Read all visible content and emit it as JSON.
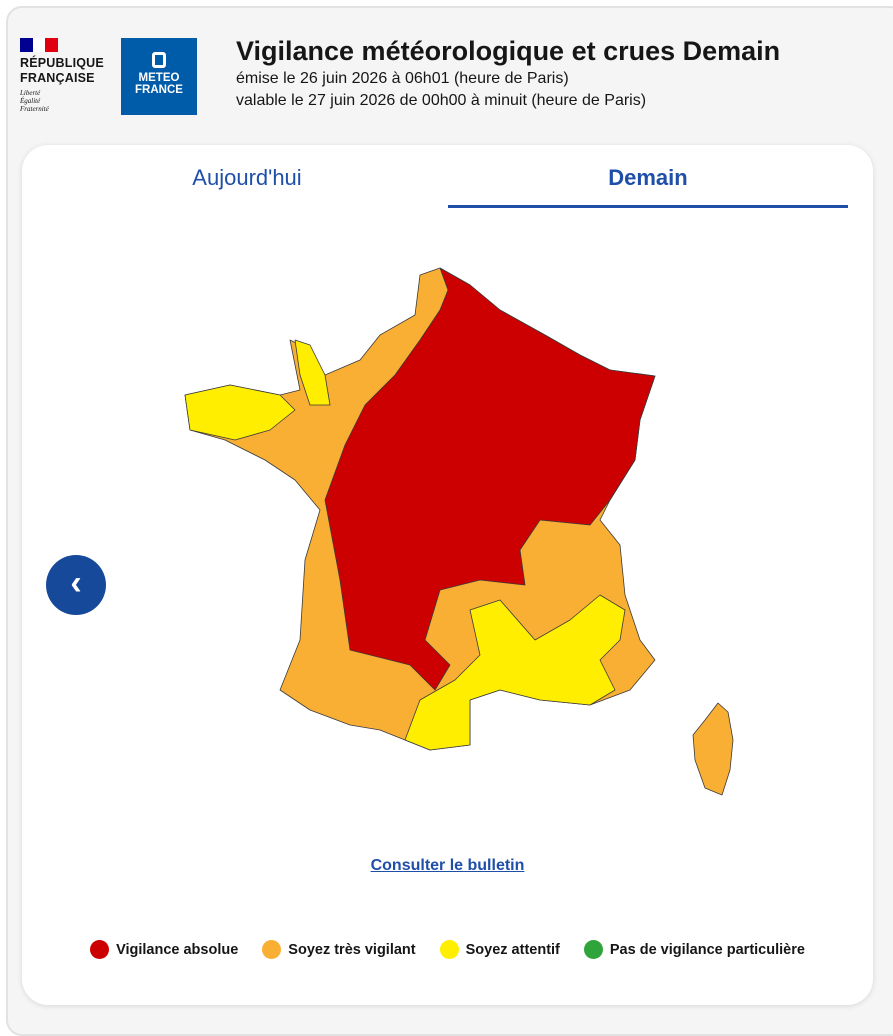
{
  "header": {
    "republic": {
      "name": [
        "RÉPUBLIQUE",
        "FRANÇAISE"
      ],
      "motto": [
        "Liberté",
        "Égalité",
        "Fraternité"
      ]
    },
    "logo": [
      "METEO",
      "FRANCE"
    ],
    "title": "Vigilance météorologique et crues Demain",
    "issued": "émise le 26 juin 2026 à 06h01 (heure de Paris)",
    "valid": "valable le 27 juin 2026 de 00h00 à minuit (heure de Paris)"
  },
  "tabs": [
    {
      "label": "Aujourd'hui",
      "active": false
    },
    {
      "label": "Demain",
      "active": true
    }
  ],
  "link": "Consulter le bulletin",
  "legend": [
    {
      "label": "Vigilance absolue",
      "color": "#cc0000"
    },
    {
      "label": "Soyez très vigilant",
      "color": "#f9ae34"
    },
    {
      "label": "Soyez attentif",
      "color": "#ffee00"
    },
    {
      "label": "Pas de vigilance particulière",
      "color": "#2fa43a"
    }
  ]
}
